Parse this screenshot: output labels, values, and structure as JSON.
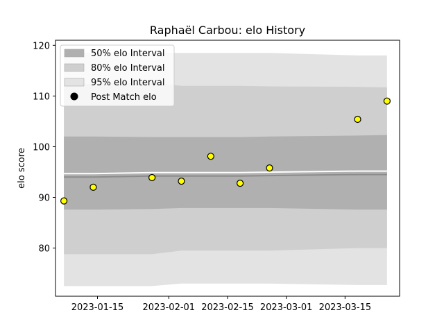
{
  "chart_data": {
    "type": "line",
    "title": "Raphaël Carbou: elo History",
    "xlabel": "",
    "ylabel": "elo score",
    "x_ticks": [
      "2023-01-15",
      "2023-02-01",
      "2023-02-15",
      "2023-03-01",
      "2023-03-15"
    ],
    "y_ticks": [
      80,
      90,
      100,
      110,
      120
    ],
    "xlim": [
      "2023-01-05",
      "2023-03-28"
    ],
    "ylim": [
      70.5,
      121
    ],
    "legend_position": "top-left",
    "grid": false,
    "x": [
      "2023-01-07",
      "2023-01-14",
      "2023-01-28",
      "2023-02-04",
      "2023-02-11",
      "2023-02-18",
      "2023-02-25",
      "2023-03-18",
      "2023-03-25"
    ],
    "post_match_elo": [
      89.3,
      92.0,
      93.9,
      93.2,
      98.1,
      92.8,
      95.8,
      105.4,
      109.0
    ],
    "mean": [
      94.0,
      94.0,
      94.2,
      94.2,
      94.2,
      94.2,
      94.3,
      94.5,
      94.5
    ],
    "interval_50_low": [
      87.6,
      87.6,
      87.7,
      87.9,
      87.9,
      87.9,
      87.9,
      87.6,
      87.6
    ],
    "interval_50_high": [
      102.0,
      102.0,
      101.9,
      101.9,
      101.9,
      101.9,
      102.0,
      102.2,
      102.3
    ],
    "interval_80_low": [
      78.8,
      78.8,
      78.8,
      79.5,
      79.5,
      79.5,
      79.5,
      80.0,
      80.0
    ],
    "interval_80_high": [
      112.4,
      112.4,
      112.6,
      112.0,
      112.0,
      112.0,
      111.9,
      111.8,
      111.7
    ],
    "interval_95_low": [
      72.5,
      72.5,
      72.5,
      73.0,
      73.0,
      73.0,
      73.0,
      72.7,
      72.7
    ],
    "interval_95_high": [
      118.5,
      118.5,
      118.5,
      118.5,
      118.5,
      118.5,
      118.5,
      118.0,
      118.0
    ],
    "legend": [
      "50% elo Interval",
      "80% elo Interval",
      "95% elo Interval",
      "Post Match elo"
    ],
    "colors": {
      "band_50": "#b0b0b0",
      "band_80": "#cfcfcf",
      "band_95": "#e3e3e3",
      "mean_line": "#8c8c8c",
      "marker_fill": "#ffff00",
      "marker_edge": "#000000"
    }
  }
}
